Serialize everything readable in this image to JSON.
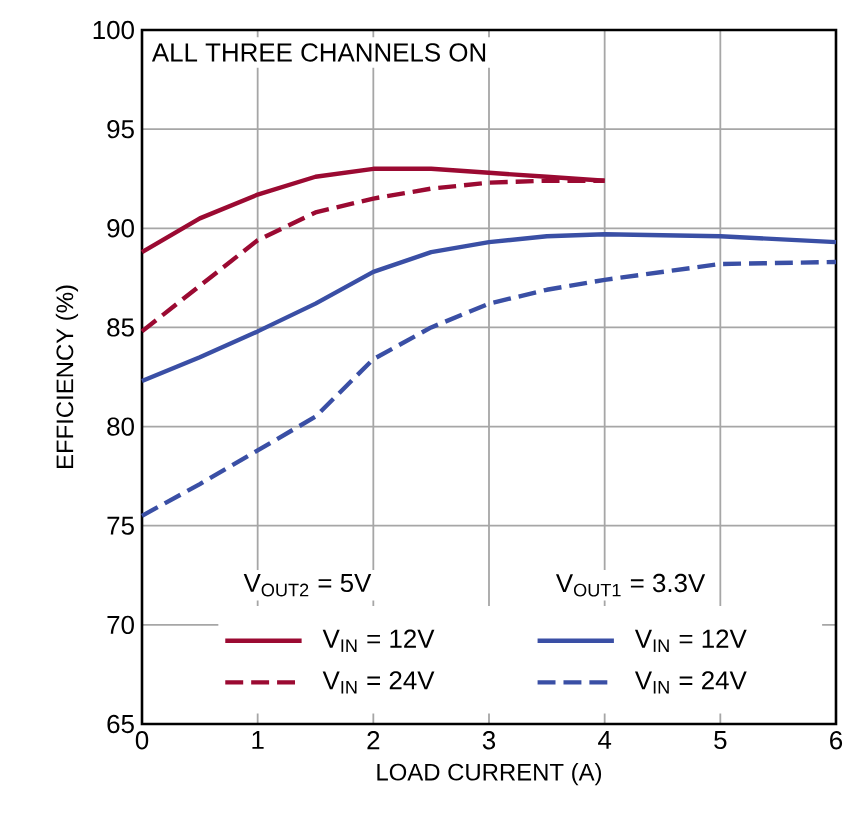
{
  "chart_data": {
    "type": "line",
    "xlabel": "LOAD CURRENT (A)",
    "ylabel": "EFFICIENCY (%)",
    "annotations": [
      "ALL THREE CHANNELS ON",
      "V$_{OUT2}$ = 5V",
      "V$_{OUT1}$ = 3.3V"
    ],
    "xlim": [
      0,
      6
    ],
    "ylim": [
      65,
      100
    ],
    "xticks": [
      0,
      1,
      2,
      3,
      4,
      5,
      6
    ],
    "yticks": [
      65,
      70,
      75,
      80,
      85,
      90,
      95,
      100
    ],
    "grid": true,
    "legend": "bottom",
    "marker": "none",
    "series": [
      {
        "name": "V$_{IN}$ = 12V",
        "color": "#9b0a32",
        "line_style": "solid",
        "x": [
          0,
          0.5,
          1,
          1.5,
          2,
          2.5,
          3,
          3.5,
          4
        ],
        "values": [
          88.8,
          90.5,
          91.7,
          92.6,
          93.0,
          93.0,
          92.8,
          92.6,
          92.4
        ]
      },
      {
        "name": "V$_{IN}$ = 24V",
        "color": "#9b0a32",
        "line_style": "dashed",
        "x": [
          0,
          0.5,
          1,
          1.5,
          2,
          2.5,
          3,
          3.5,
          4
        ],
        "values": [
          84.8,
          87.1,
          89.4,
          90.8,
          91.5,
          92.0,
          92.3,
          92.4,
          92.4
        ]
      },
      {
        "name": "V$_{IN}$ = 12V",
        "color": "#3a4fa5",
        "line_style": "solid",
        "x": [
          0,
          0.5,
          1,
          1.5,
          2,
          2.5,
          3,
          3.5,
          4,
          5,
          6
        ],
        "values": [
          82.3,
          83.5,
          84.8,
          86.2,
          87.8,
          88.8,
          89.3,
          89.6,
          89.7,
          89.6,
          89.3
        ]
      },
      {
        "name": "V$_{IN}$ = 24V",
        "color": "#3a4fa5",
        "line_style": "dashed",
        "x": [
          0,
          0.5,
          1,
          1.5,
          2,
          2.5,
          3,
          3.5,
          4,
          5,
          6
        ],
        "values": [
          75.5,
          77.1,
          78.8,
          80.5,
          83.4,
          85.0,
          86.2,
          86.9,
          87.4,
          88.2,
          88.3
        ]
      }
    ]
  }
}
